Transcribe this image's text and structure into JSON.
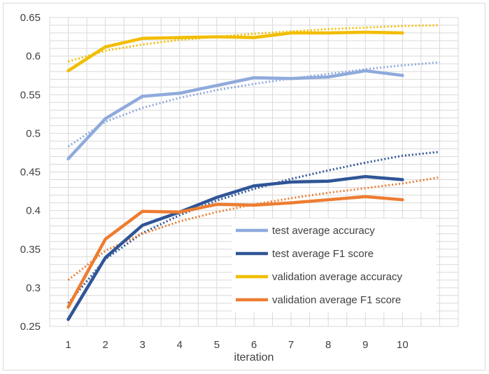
{
  "chart_data": {
    "type": "line",
    "title": "",
    "xlabel": "iteration",
    "ylabel": "",
    "categories": [
      "1",
      "2",
      "3",
      "4",
      "5",
      "6",
      "7",
      "8",
      "9",
      "10"
    ],
    "x": [
      1,
      2,
      3,
      4,
      5,
      6,
      7,
      8,
      9,
      10
    ],
    "ylim": [
      0.25,
      0.65
    ],
    "xlim": [
      0.5,
      11.5
    ],
    "yticks": [
      "0.25",
      "0.3",
      "0.35",
      "0.4",
      "0.45",
      "0.5",
      "0.55",
      "0.6",
      "0.65"
    ],
    "grid": true,
    "legend_position": "lower-right",
    "series": [
      {
        "name": "test average accuracy",
        "color": "#8faadc",
        "values": [
          0.467,
          0.519,
          0.548,
          0.552,
          0.562,
          0.572,
          0.571,
          0.573,
          0.581,
          0.575
        ],
        "trend": [
          0.483,
          0.515,
          0.533,
          0.546,
          0.556,
          0.564,
          0.571,
          0.577,
          0.583,
          0.588,
          0.592
        ]
      },
      {
        "name": "test average F1 score",
        "color": "#2f5597",
        "values": [
          0.259,
          0.339,
          0.381,
          0.398,
          0.417,
          0.432,
          0.437,
          0.438,
          0.444,
          0.44
        ],
        "trend": [
          0.28,
          0.337,
          0.371,
          0.394,
          0.413,
          0.428,
          0.441,
          0.452,
          0.462,
          0.471,
          0.476
        ]
      },
      {
        "name": "validation average accuracy",
        "color": "#f2bd00",
        "values": [
          0.581,
          0.612,
          0.623,
          0.624,
          0.625,
          0.624,
          0.63,
          0.63,
          0.631,
          0.63
        ],
        "trend": [
          0.593,
          0.607,
          0.615,
          0.621,
          0.625,
          0.629,
          0.632,
          0.635,
          0.637,
          0.639,
          0.64
        ]
      },
      {
        "name": "validation average F1 score",
        "color": "#ed7d31",
        "values": [
          0.275,
          0.363,
          0.399,
          0.398,
          0.408,
          0.407,
          0.41,
          0.414,
          0.418,
          0.414
        ],
        "trend": [
          0.31,
          0.348,
          0.37,
          0.386,
          0.398,
          0.408,
          0.416,
          0.423,
          0.429,
          0.435,
          0.443
        ]
      }
    ]
  }
}
